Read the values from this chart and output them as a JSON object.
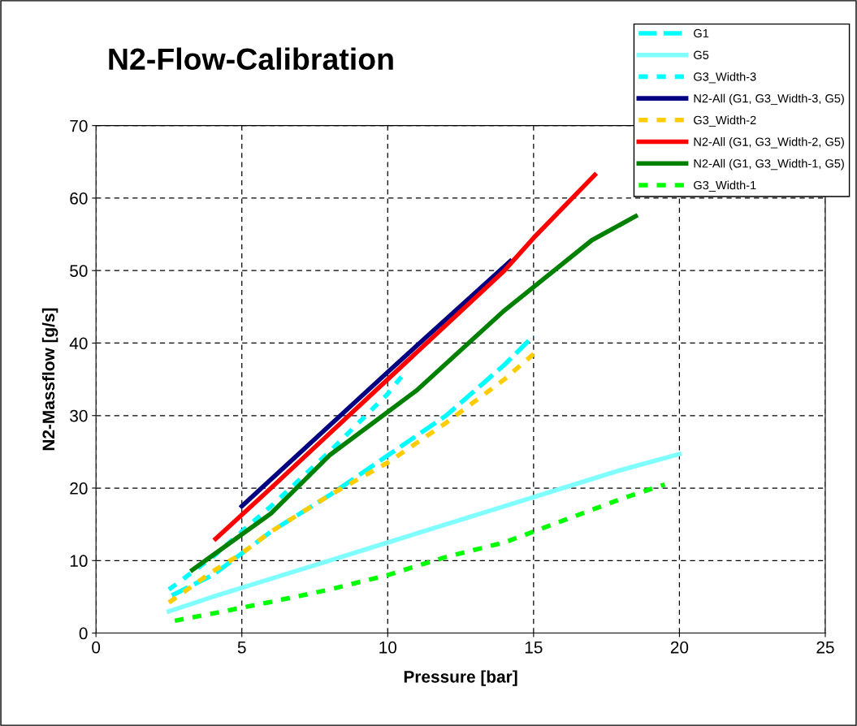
{
  "chart_data": {
    "type": "line",
    "title": "N2-Flow-Calibration",
    "xlabel": "Pressure [bar]",
    "ylabel": "N2-Massflow [g/s]",
    "xlim": [
      0,
      25
    ],
    "xticks": [
      0,
      5,
      10,
      15,
      20,
      25
    ],
    "ylim": [
      0,
      70
    ],
    "yticks": [
      0,
      10,
      20,
      30,
      40,
      50,
      60,
      70
    ],
    "grid": true,
    "legend": "top right",
    "marker": "none",
    "series": [
      {
        "name": "G1",
        "color": "#00ffff",
        "line_style": "dashed",
        "x": [
          2.6,
          4,
          5,
          6,
          8,
          10,
          12,
          14,
          15
        ],
        "values": [
          5.2,
          8,
          11,
          14,
          19,
          24.5,
          30,
          37,
          41
        ]
      },
      {
        "name": "G5",
        "color": "#80ffff",
        "line_style": "solid",
        "x": [
          2.5,
          4,
          6,
          8,
          10,
          12,
          14,
          16,
          18,
          20
        ],
        "values": [
          3,
          5,
          7.5,
          10,
          12.5,
          15,
          17.5,
          20,
          22.5,
          24.7
        ]
      },
      {
        "name": "G3_Width-3",
        "color": "#00ffff",
        "line_style": "dotted",
        "x": [
          2.5,
          4,
          5,
          6,
          8,
          10,
          10.5
        ],
        "values": [
          6,
          10.5,
          14,
          17.5,
          25,
          33,
          35.5
        ]
      },
      {
        "name": "N2-All (G1, G3_Width-3, G5)",
        "color": "#000080",
        "line_style": "solid",
        "x": [
          5,
          10,
          14.2
        ],
        "values": [
          17.5,
          36,
          51.3
        ]
      },
      {
        "name": "G3_Width-2",
        "color": "#ffcc00",
        "line_style": "dotted",
        "x": [
          2.5,
          4,
          5,
          6,
          8,
          10,
          12,
          14,
          15
        ],
        "values": [
          4.2,
          8.5,
          11,
          14,
          19,
          23.5,
          29,
          35,
          38.5
        ]
      },
      {
        "name": "N2-All (G1, G3_Width-2, G5)",
        "color": "#ff0000",
        "line_style": "solid",
        "x": [
          4.1,
          6,
          8,
          10,
          12,
          14,
          15,
          17.1
        ],
        "values": [
          13,
          20,
          27.5,
          35,
          42.5,
          50,
          54.5,
          63.2
        ]
      },
      {
        "name": "N2-All (G1, G3_Width-1, G5)",
        "color": "#008000",
        "line_style": "solid",
        "x": [
          3.3,
          6,
          8,
          11,
          14,
          17,
          18.5
        ],
        "values": [
          8.7,
          16.5,
          24.5,
          33.5,
          44.5,
          54.2,
          57.5
        ]
      },
      {
        "name": "G3_Width-1",
        "color": "#00ff00",
        "line_style": "dotted",
        "x": [
          2.7,
          4,
          5,
          6,
          8,
          10,
          12,
          14,
          16,
          18,
          19.5
        ],
        "values": [
          1.7,
          2.7,
          3.5,
          4.3,
          6,
          8,
          10.5,
          12.5,
          15.5,
          18.5,
          20.5
        ]
      }
    ]
  }
}
